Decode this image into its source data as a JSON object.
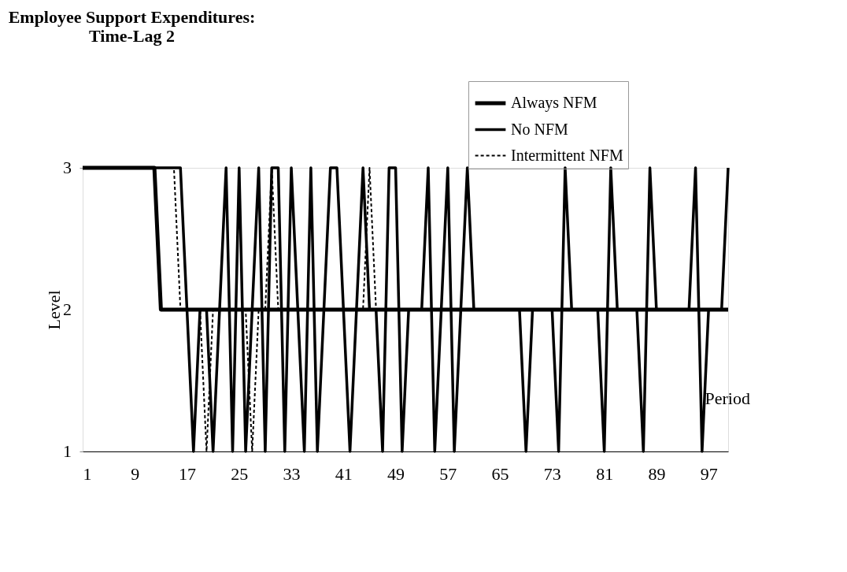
{
  "chart_data": {
    "type": "line",
    "title": "Employee Support Expenditures:\nTime-Lag 2",
    "xlabel": "Period",
    "ylabel": "Level",
    "x": [
      1,
      2,
      3,
      4,
      5,
      6,
      7,
      8,
      9,
      10,
      11,
      12,
      13,
      14,
      15,
      16,
      17,
      18,
      19,
      20,
      21,
      22,
      23,
      24,
      25,
      26,
      27,
      28,
      29,
      30,
      31,
      32,
      33,
      34,
      35,
      36,
      37,
      38,
      39,
      40,
      41,
      42,
      43,
      44,
      45,
      46,
      47,
      48,
      49,
      50,
      51,
      52,
      53,
      54,
      55,
      56,
      57,
      58,
      59,
      60,
      61,
      62,
      63,
      64,
      65,
      66,
      67,
      68,
      69,
      70,
      71,
      72,
      73,
      74,
      75,
      76,
      77,
      78,
      79,
      80,
      81,
      82,
      83,
      84,
      85,
      86,
      87,
      88,
      89,
      90,
      91,
      92,
      93,
      94,
      95,
      96,
      97,
      98,
      99,
      100
    ],
    "series": [
      {
        "name": "Always NFM",
        "color": "#000000",
        "line_style": "solid",
        "values": [
          3,
          3,
          3,
          3,
          3,
          3,
          3,
          3,
          3,
          3,
          3,
          3,
          2,
          2,
          2,
          2,
          2,
          2,
          2,
          2,
          2,
          2,
          2,
          2,
          2,
          2,
          2,
          2,
          2,
          2,
          2,
          2,
          2,
          2,
          2,
          2,
          2,
          2,
          2,
          2,
          2,
          2,
          2,
          2,
          2,
          2,
          2,
          2,
          2,
          2,
          2,
          2,
          2,
          2,
          2,
          2,
          2,
          2,
          2,
          2,
          2,
          2,
          2,
          2,
          2,
          2,
          2,
          2,
          2,
          2,
          2,
          2,
          2,
          2,
          2,
          2,
          2,
          2,
          2,
          2,
          2,
          2,
          2,
          2,
          2,
          2,
          2,
          2,
          2,
          2,
          2,
          2,
          2,
          2,
          2,
          2,
          2,
          2,
          2,
          2
        ]
      },
      {
        "name": "No NFM",
        "color": "#000000",
        "line_style": "solid",
        "values": [
          3,
          3,
          3,
          3,
          3,
          3,
          3,
          3,
          3,
          3,
          3,
          3,
          3,
          3,
          3,
          3,
          2,
          1,
          2,
          2,
          1,
          2,
          3,
          1,
          3,
          1,
          2,
          3,
          1,
          3,
          3,
          1,
          3,
          2,
          1,
          3,
          1,
          2,
          3,
          3,
          2,
          1,
          2,
          3,
          2,
          2,
          1,
          3,
          3,
          1,
          2,
          2,
          2,
          3,
          1,
          2,
          3,
          1,
          2,
          3,
          2,
          2,
          2,
          2,
          2,
          2,
          2,
          2,
          1,
          2,
          2,
          2,
          2,
          1,
          3,
          2,
          2,
          2,
          2,
          2,
          1,
          3,
          2,
          2,
          2,
          2,
          1,
          3,
          2,
          2,
          2,
          2,
          2,
          2,
          3,
          1,
          2,
          2,
          2,
          3
        ]
      },
      {
        "name": "Intermittent NFM",
        "color": "#000000",
        "line_style": "dashed",
        "values": [
          3,
          3,
          3,
          3,
          3,
          3,
          3,
          3,
          3,
          3,
          3,
          3,
          3,
          3,
          3,
          2,
          2,
          2,
          2,
          1,
          2,
          2,
          2,
          2,
          2,
          2,
          1,
          2,
          2,
          3,
          2,
          2,
          2,
          2,
          2,
          2,
          2,
          2,
          2,
          2,
          2,
          2,
          2,
          2,
          3,
          2,
          2,
          2,
          2,
          2,
          2,
          2,
          2,
          2,
          2,
          2,
          2,
          2,
          2,
          2,
          2,
          2,
          2,
          2,
          2,
          2,
          2,
          2,
          2,
          2,
          2,
          2,
          2,
          2,
          2,
          2,
          2,
          2,
          2,
          2,
          2,
          2,
          2,
          2,
          2,
          2,
          2,
          2,
          2,
          2,
          2,
          2,
          2,
          2,
          2,
          2,
          2,
          2,
          2,
          2
        ]
      }
    ],
    "xlim": [
      1,
      100
    ],
    "ylim": [
      1,
      3
    ],
    "xticks": [
      1,
      9,
      17,
      25,
      33,
      41,
      49,
      57,
      65,
      73,
      81,
      89,
      97
    ],
    "yticks": [
      1,
      2,
      3
    ],
    "grid": false,
    "legend": "top right",
    "marker": "none"
  }
}
